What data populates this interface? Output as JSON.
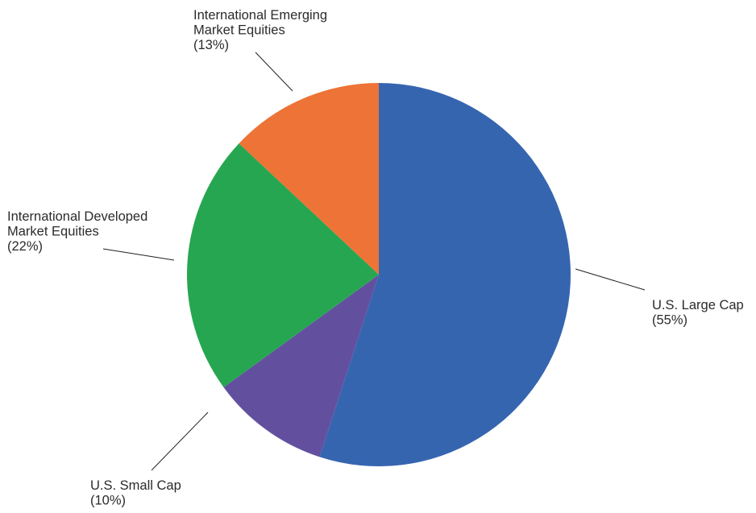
{
  "chart_data": {
    "type": "pie",
    "slices": [
      {
        "label_lines": [
          "U.S. Large Cap"
        ],
        "pct": "(55%)",
        "value": 55,
        "color": "#3665B0"
      },
      {
        "label_lines": [
          "U.S. Small Cap"
        ],
        "pct": "(10%)",
        "value": 10,
        "color": "#62509F"
      },
      {
        "label_lines": [
          "International Developed",
          "Market Equities"
        ],
        "pct": "(22%)",
        "value": 22,
        "color": "#27A651"
      },
      {
        "label_lines": [
          "International Emerging",
          "Market Equities"
        ],
        "pct": "(13%)",
        "value": 13,
        "color": "#EE7336"
      }
    ],
    "start_angle": "12 o'clock",
    "direction": "clockwise",
    "legend": "none"
  }
}
